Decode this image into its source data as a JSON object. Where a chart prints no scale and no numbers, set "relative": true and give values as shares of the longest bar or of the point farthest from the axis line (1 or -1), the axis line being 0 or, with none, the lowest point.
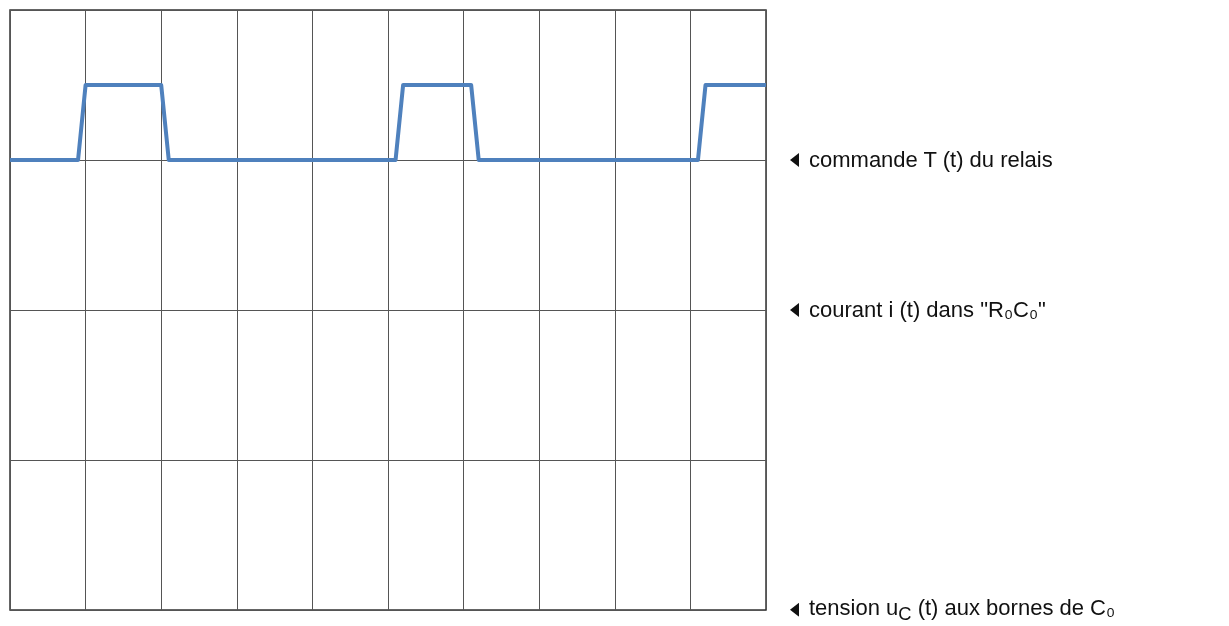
{
  "chart_data": {
    "type": "line",
    "categories": [
      null,
      null,
      null,
      null,
      null,
      null,
      null,
      null,
      null,
      null,
      null,
      null,
      null,
      null,
      null,
      null,
      null,
      null,
      null,
      null,
      null,
      null,
      null,
      null,
      null,
      null,
      null,
      null,
      null,
      null,
      null,
      null,
      null,
      null,
      null,
      null,
      null,
      null,
      null,
      null,
      null,
      null,
      null,
      null,
      null,
      null,
      null,
      null,
      null,
      null,
      null,
      null,
      null,
      null,
      null,
      null,
      null,
      null,
      null,
      null,
      null,
      null,
      null,
      null,
      null,
      null,
      null,
      null,
      null,
      null,
      null,
      null,
      null,
      null,
      null,
      null,
      null,
      null,
      null,
      null,
      null,
      null,
      null,
      null,
      null,
      null,
      null,
      null,
      null,
      null,
      null,
      null,
      null,
      null,
      null,
      null,
      null,
      null,
      null,
      null,
      null
    ],
    "values": [
      0,
      0,
      0,
      0,
      0,
      0,
      0,
      0,
      0,
      0,
      1,
      1,
      1,
      1,
      1,
      1,
      1,
      1,
      1,
      1,
      1,
      0,
      0,
      0,
      0,
      0,
      0,
      0,
      0,
      0,
      0,
      0,
      0,
      0,
      0,
      0,
      0,
      0,
      0,
      0,
      0,
      0,
      0,
      0,
      0,
      0,
      0,
      0,
      0,
      0,
      0,
      0,
      1,
      1,
      1,
      1,
      1,
      1,
      1,
      1,
      1,
      1,
      0,
      0,
      0,
      0,
      0,
      0,
      0,
      0,
      0,
      0,
      0,
      0,
      0,
      0,
      0,
      0,
      0,
      0,
      0,
      0,
      0,
      0,
      0,
      0,
      0,
      0,
      0,
      0,
      0,
      0,
      1,
      1,
      1,
      1,
      1,
      1,
      1,
      1,
      1
    ],
    "color": "#4f81bd",
    "relative": true,
    "grid": true,
    "marker": "none",
    "line_style": "solid",
    "annotations": [
      "commande T (t) du relais",
      "courant i (t) dans \"R₀C₀\"",
      "tension u$_{C}$ (t) aux bornes de C₀"
    ]
  }
}
